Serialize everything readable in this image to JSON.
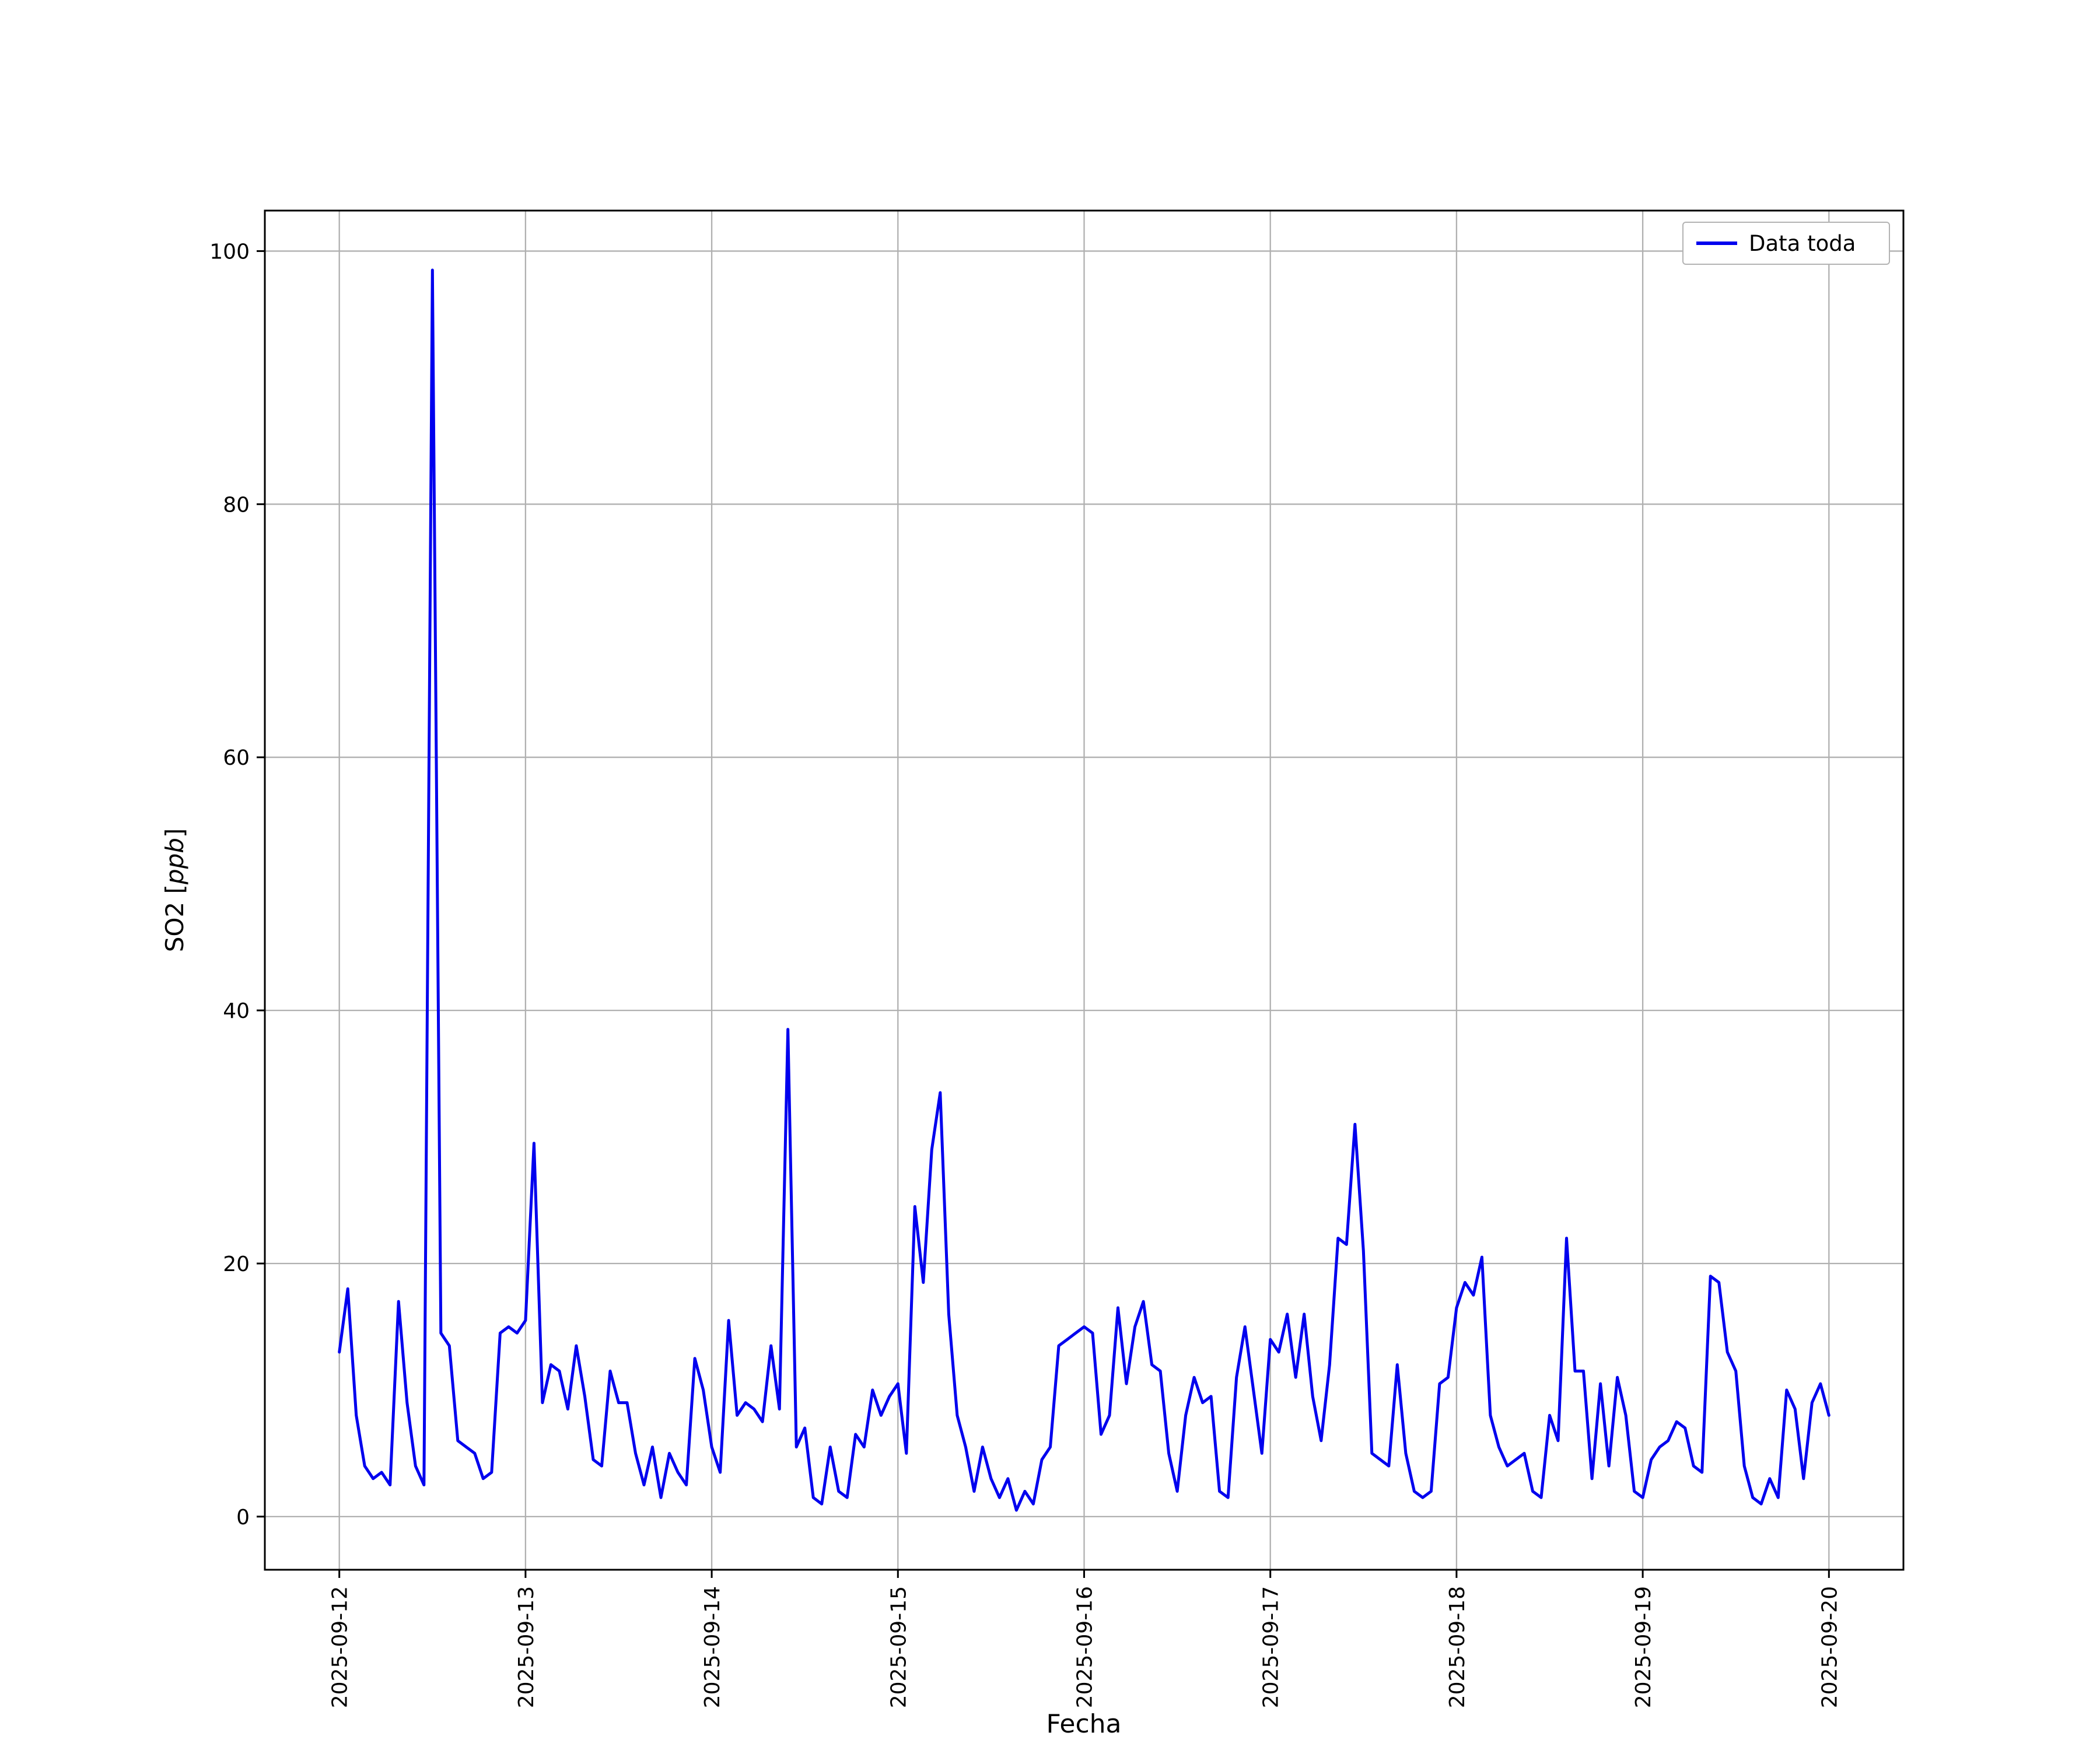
{
  "figure": {
    "background": "#ffffff"
  },
  "chart_data": {
    "type": "line",
    "title": "",
    "xlabel": "Fecha",
    "ylabel": "SO2 [ppb]",
    "ylabel_parts": {
      "prefix": "SO2 [",
      "italic": "ppb",
      "suffix": "]"
    },
    "legend": {
      "location": "upper right",
      "entries": [
        {
          "label": "Data toda",
          "color": "#0000ee"
        }
      ]
    },
    "x_ticks": [
      "2025-09-12",
      "2025-09-13",
      "2025-09-14",
      "2025-09-15",
      "2025-09-16",
      "2025-09-17",
      "2025-09-18",
      "2025-09-19",
      "2025-09-20"
    ],
    "y_ticks": [
      0,
      20,
      40,
      60,
      80,
      100
    ],
    "ylim": [
      -4.2,
      103.2
    ],
    "xlim_days": [
      -0.4,
      8.4
    ],
    "x_span_days": 8,
    "grid": true,
    "grid_color": "#b0b0b0",
    "frame_color": "#000000",
    "series": [
      {
        "name": "Data toda",
        "color": "#0000ee",
        "x_start": "2025-09-12",
        "x_end": "2025-09-20",
        "values": [
          13,
          18,
          8,
          4,
          3,
          3.5,
          2.5,
          17,
          9,
          4,
          2.5,
          98.5,
          14.5,
          13.5,
          6,
          5.5,
          5,
          3,
          3.5,
          14.5,
          15,
          14.5,
          15.5,
          29.5,
          9,
          12,
          11.5,
          8.5,
          13.5,
          9.5,
          4.5,
          4,
          11.5,
          9,
          9,
          5,
          2.5,
          5.5,
          1.5,
          5,
          3.5,
          2.5,
          12.5,
          10,
          5.5,
          3.5,
          15.5,
          8,
          9,
          8.5,
          7.5,
          13.5,
          8.5,
          38.5,
          5.5,
          7,
          1.5,
          1,
          5.5,
          2,
          1.5,
          6.5,
          5.5,
          10,
          8,
          9.5,
          10.5,
          5,
          24.5,
          18.5,
          29,
          33.5,
          16,
          8,
          5.5,
          2,
          5.5,
          3,
          1.5,
          3,
          0.5,
          2,
          1,
          4.5,
          5.5,
          13.5,
          14,
          14.5,
          15,
          14.5,
          6.5,
          8,
          16.5,
          10.5,
          15,
          17,
          12,
          11.5,
          5,
          2,
          8,
          11,
          9,
          9.5,
          2,
          1.5,
          11,
          15,
          10,
          5,
          14,
          13,
          16,
          11,
          16,
          9.5,
          6,
          12,
          22,
          21.5,
          31,
          21,
          5,
          4.5,
          4,
          12,
          5,
          2,
          1.5,
          2,
          10.5,
          11,
          16.5,
          18.5,
          17.5,
          20.5,
          8,
          5.5,
          4,
          4.5,
          5,
          2,
          1.5,
          8,
          6,
          22,
          11.5,
          11.5,
          3,
          10.5,
          4,
          11,
          8,
          2,
          1.5,
          4.5,
          5.5,
          6,
          7.5,
          7,
          4,
          3.5,
          19,
          18.5,
          13,
          11.5,
          4,
          1.5,
          1,
          3,
          1.5,
          10,
          8.5,
          3,
          9,
          10.5,
          8
        ]
      }
    ]
  }
}
